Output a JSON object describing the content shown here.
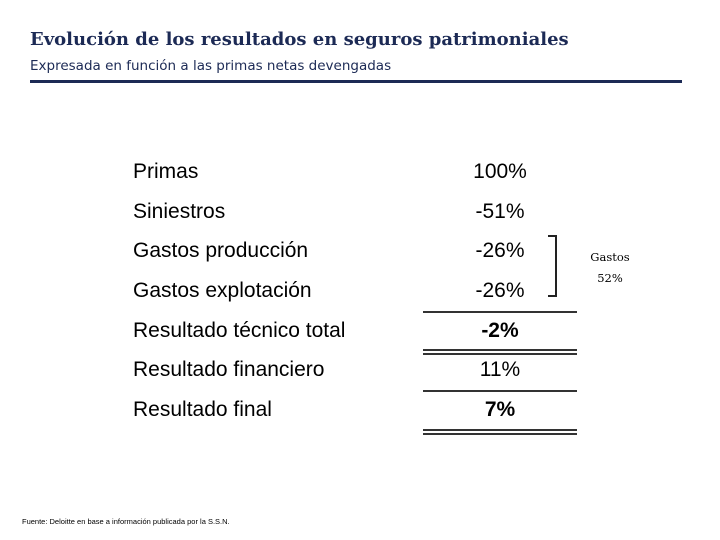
{
  "header": {
    "title": "Evolución de los resultados en seguros patrimoniales",
    "subtitle": "Expresada en función a las primas netas devengadas"
  },
  "table": {
    "rows": [
      [
        "Primas",
        "100%"
      ],
      [
        "Siniestros",
        "-51%"
      ],
      [
        "Gastos producción",
        "-26%"
      ],
      [
        "Gastos explotación",
        "-26%"
      ],
      [
        "Resultado técnico total",
        "-2%"
      ],
      [
        "Resultado financiero",
        "11%"
      ],
      [
        "Resultado final",
        "7%"
      ]
    ]
  },
  "bracket": {
    "label": "Gastos",
    "value": "52%"
  },
  "footnote": "Fuente: Deloitte en base a  información publicada por la S.S.N."
}
